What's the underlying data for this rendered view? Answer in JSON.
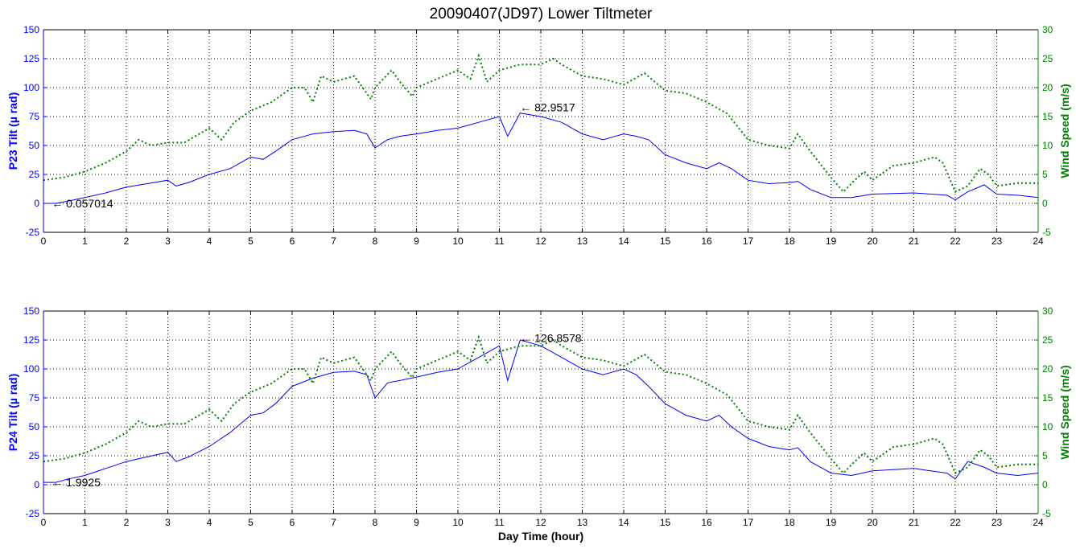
{
  "title": "20090407(JD97) Lower Tiltmeter",
  "colors": {
    "tilt": "#0000ff",
    "wind": "#007f00",
    "axis": "#000000",
    "grid": "#000000"
  },
  "chart_data": [
    {
      "type": "line",
      "ylabel": "P23 Tilt (µ rad)",
      "y2label": "Wind Speed (m/s)",
      "xlabel": "",
      "xlim": [
        0,
        24
      ],
      "ylim": [
        -25,
        150
      ],
      "y2lim": [
        -5,
        30
      ],
      "x_ticks": [
        "0",
        "1",
        "2",
        "3",
        "4",
        "5",
        "6",
        "7",
        "8",
        "9",
        "10",
        "11",
        "12",
        "13",
        "14",
        "15",
        "16",
        "17",
        "18",
        "19",
        "20",
        "21",
        "22",
        "23",
        "24"
      ],
      "y_ticks": [
        "-25",
        "0",
        "25",
        "50",
        "75",
        "100",
        "125",
        "150"
      ],
      "y2_ticks": [
        "-5",
        "0",
        "5",
        "10",
        "15",
        "20",
        "25",
        "30"
      ],
      "grid": true,
      "series": [
        {
          "axis": "left",
          "style": "solid",
          "x": [
            0,
            0.3,
            0.6,
            1,
            1.5,
            2,
            2.5,
            3,
            3.2,
            3.5,
            4,
            4.5,
            5,
            5.3,
            5.6,
            6,
            6.5,
            7,
            7.5,
            7.8,
            8,
            8.3,
            8.6,
            9,
            9.5,
            10,
            10.5,
            11,
            11.2,
            11.5,
            12,
            12.5,
            13,
            13.5,
            14,
            14.3,
            14.6,
            15,
            15.5,
            16,
            16.3,
            16.6,
            17,
            17.5,
            18,
            18.2,
            18.5,
            19,
            19.5,
            20,
            21,
            21.8,
            22,
            22.3,
            22.7,
            23,
            23.5,
            24
          ],
          "y": [
            0,
            0,
            2,
            5,
            9,
            14,
            17,
            20,
            15,
            18,
            25,
            30,
            40,
            38,
            45,
            55,
            60,
            62,
            63,
            60,
            48,
            55,
            58,
            60,
            63,
            65,
            70,
            75,
            58,
            78,
            75,
            70,
            60,
            55,
            60,
            58,
            55,
            42,
            35,
            30,
            35,
            30,
            20,
            17,
            18,
            19,
            12,
            5,
            5,
            8,
            9,
            7,
            3,
            10,
            16,
            8,
            7,
            5
          ]
        },
        {
          "axis": "right",
          "style": "dotted",
          "x": [
            0,
            0.5,
            1,
            1.5,
            2,
            2.3,
            2.6,
            3,
            3.4,
            4,
            4.3,
            4.6,
            5,
            5.5,
            6,
            6.3,
            6.5,
            6.7,
            7,
            7.5,
            7.9,
            8,
            8.4,
            8.6,
            8.9,
            9,
            9.5,
            10,
            10.3,
            10.5,
            10.7,
            11,
            11.5,
            12,
            12.3,
            12.5,
            13,
            13.5,
            14,
            14.5,
            15,
            15.5,
            16,
            16.5,
            17,
            17.5,
            18,
            18.2,
            18.5,
            19,
            19.3,
            19.5,
            19.8,
            20,
            20.5,
            21,
            21.5,
            21.7,
            22,
            22.3,
            22.6,
            22.8,
            23,
            23.5,
            24
          ],
          "y": [
            4,
            4.5,
            5.5,
            7,
            9,
            11,
            10,
            10.5,
            10.5,
            13,
            11,
            14,
            16,
            17.5,
            20,
            20,
            17.5,
            22,
            21,
            22,
            18,
            20,
            23,
            21,
            18.5,
            20,
            21.5,
            23,
            21.5,
            25.5,
            21,
            23,
            24,
            24,
            25,
            24,
            22,
            21.5,
            20.5,
            22.5,
            19.5,
            19,
            17.5,
            15.5,
            11,
            10,
            9.5,
            12,
            9,
            4.5,
            2,
            3.5,
            5.5,
            4,
            6.5,
            7,
            8,
            7,
            2,
            3,
            6,
            5,
            3,
            3.5,
            3.5
          ]
        }
      ],
      "annotations": [
        {
          "x": 0.2,
          "y": 0.057014,
          "text": "← 0.057014"
        },
        {
          "x": 11.5,
          "y": 82.9517,
          "text": "← 82.9517"
        }
      ]
    },
    {
      "type": "line",
      "ylabel": "P24 Tilt (µ rad)",
      "y2label": "Wind Speed (m/s)",
      "xlabel": "Day Time (hour)",
      "xlim": [
        0,
        24
      ],
      "ylim": [
        -25,
        150
      ],
      "y2lim": [
        -5,
        30
      ],
      "x_ticks": [
        "0",
        "1",
        "2",
        "3",
        "4",
        "5",
        "6",
        "7",
        "8",
        "9",
        "10",
        "11",
        "12",
        "13",
        "14",
        "15",
        "16",
        "17",
        "18",
        "19",
        "20",
        "21",
        "22",
        "23",
        "24"
      ],
      "y_ticks": [
        "-25",
        "0",
        "25",
        "50",
        "75",
        "100",
        "125",
        "150"
      ],
      "y2_ticks": [
        "-5",
        "0",
        "5",
        "10",
        "15",
        "20",
        "25",
        "30"
      ],
      "grid": true,
      "series": [
        {
          "axis": "left",
          "style": "solid",
          "x": [
            0,
            0.3,
            0.6,
            1,
            1.5,
            2,
            2.5,
            3,
            3.2,
            3.5,
            4,
            4.5,
            5,
            5.3,
            5.6,
            6,
            6.5,
            7,
            7.5,
            7.8,
            8,
            8.3,
            8.6,
            9,
            9.5,
            10,
            10.5,
            11,
            11.2,
            11.5,
            12,
            12.5,
            13,
            13.5,
            14,
            14.3,
            14.6,
            15,
            15.5,
            16,
            16.3,
            16.6,
            17,
            17.5,
            18,
            18.2,
            18.5,
            19,
            19.5,
            20,
            21,
            21.8,
            22,
            22.3,
            22.7,
            23,
            23.5,
            24
          ],
          "y": [
            2,
            2,
            5,
            8,
            14,
            20,
            24,
            28,
            20,
            24,
            33,
            45,
            60,
            62,
            70,
            85,
            92,
            97,
            98,
            95,
            75,
            88,
            90,
            93,
            97,
            100,
            110,
            120,
            90,
            125,
            120,
            110,
            100,
            95,
            100,
            95,
            85,
            70,
            60,
            55,
            60,
            50,
            40,
            33,
            30,
            32,
            20,
            10,
            8,
            12,
            14,
            10,
            5,
            20,
            15,
            10,
            8,
            10
          ]
        },
        {
          "axis": "right",
          "style": "dotted",
          "x": [
            0,
            0.5,
            1,
            1.5,
            2,
            2.3,
            2.6,
            3,
            3.4,
            4,
            4.3,
            4.6,
            5,
            5.5,
            6,
            6.3,
            6.5,
            6.7,
            7,
            7.5,
            7.9,
            8,
            8.4,
            8.6,
            8.9,
            9,
            9.5,
            10,
            10.3,
            10.5,
            10.7,
            11,
            11.5,
            12,
            12.3,
            12.5,
            13,
            13.5,
            14,
            14.5,
            15,
            15.5,
            16,
            16.5,
            17,
            17.5,
            18,
            18.2,
            18.5,
            19,
            19.3,
            19.5,
            19.8,
            20,
            20.5,
            21,
            21.5,
            21.7,
            22,
            22.3,
            22.6,
            22.8,
            23,
            23.5,
            24
          ],
          "y": [
            4,
            4.5,
            5.5,
            7,
            9,
            11,
            10,
            10.5,
            10.5,
            13,
            11,
            14,
            16,
            17.5,
            20,
            20,
            17.5,
            22,
            21,
            22,
            18,
            20,
            23,
            21,
            18.5,
            20,
            21.5,
            23,
            21.5,
            25.5,
            21,
            23,
            24,
            24,
            25,
            24,
            22,
            21.5,
            20.5,
            22.5,
            19.5,
            19,
            17.5,
            15.5,
            11,
            10,
            9.5,
            12,
            9,
            4.5,
            2,
            3.5,
            5.5,
            4,
            6.5,
            7,
            8,
            7,
            2,
            3,
            6,
            5,
            3,
            3.5,
            3.5
          ]
        }
      ],
      "annotations": [
        {
          "x": 0.2,
          "y": 1.9925,
          "text": "← 1.9925"
        },
        {
          "x": 11.5,
          "y": 126.8578,
          "text": "← 126.8578"
        }
      ]
    }
  ]
}
